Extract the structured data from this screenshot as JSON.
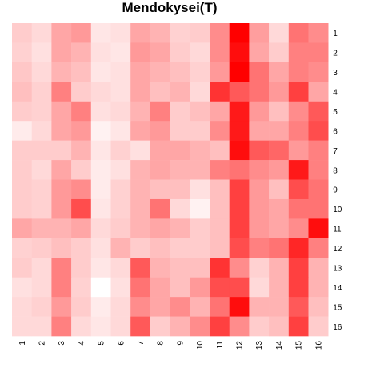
{
  "chart_data": {
    "type": "heatmap",
    "title": "Mendokysei(T)",
    "x_labels": [
      "1",
      "2",
      "3",
      "4",
      "5",
      "6",
      "7",
      "8",
      "9",
      "10",
      "11",
      "12",
      "13",
      "14",
      "15",
      "16"
    ],
    "y_labels": [
      "1",
      "2",
      "3",
      "4",
      "5",
      "6",
      "7",
      "8",
      "9",
      "10",
      "11",
      "12",
      "13",
      "14",
      "15",
      "16"
    ],
    "value_range": [
      0,
      1
    ],
    "colors": {
      "low": "#ffffff",
      "high": "#ff0000"
    },
    "values": [
      [
        0.2,
        0.15,
        0.35,
        0.4,
        0.1,
        0.12,
        0.35,
        0.3,
        0.18,
        0.2,
        0.45,
        1.0,
        0.38,
        0.15,
        0.55,
        0.45
      ],
      [
        0.18,
        0.12,
        0.35,
        0.3,
        0.12,
        0.1,
        0.4,
        0.35,
        0.2,
        0.15,
        0.45,
        0.95,
        0.35,
        0.2,
        0.5,
        0.5
      ],
      [
        0.22,
        0.15,
        0.3,
        0.25,
        0.1,
        0.12,
        0.35,
        0.3,
        0.25,
        0.18,
        0.4,
        1.0,
        0.55,
        0.35,
        0.5,
        0.45
      ],
      [
        0.25,
        0.18,
        0.5,
        0.2,
        0.15,
        0.12,
        0.35,
        0.25,
        0.3,
        0.15,
        0.8,
        0.65,
        0.55,
        0.4,
        0.75,
        0.35
      ],
      [
        0.2,
        0.18,
        0.35,
        0.5,
        0.12,
        0.15,
        0.3,
        0.5,
        0.2,
        0.25,
        0.35,
        0.9,
        0.4,
        0.25,
        0.45,
        0.65
      ],
      [
        0.08,
        0.15,
        0.35,
        0.4,
        0.05,
        0.1,
        0.35,
        0.4,
        0.2,
        0.2,
        0.45,
        0.9,
        0.35,
        0.35,
        0.5,
        0.7
      ],
      [
        0.2,
        0.2,
        0.2,
        0.3,
        0.1,
        0.18,
        0.12,
        0.35,
        0.35,
        0.3,
        0.25,
        0.95,
        0.65,
        0.6,
        0.4,
        0.5
      ],
      [
        0.2,
        0.15,
        0.35,
        0.2,
        0.08,
        0.12,
        0.3,
        0.35,
        0.3,
        0.3,
        0.5,
        0.55,
        0.45,
        0.4,
        0.9,
        0.5
      ],
      [
        0.2,
        0.18,
        0.4,
        0.45,
        0.08,
        0.18,
        0.3,
        0.25,
        0.25,
        0.12,
        0.25,
        0.75,
        0.4,
        0.25,
        0.7,
        0.55
      ],
      [
        0.2,
        0.18,
        0.4,
        0.7,
        0.1,
        0.18,
        0.3,
        0.55,
        0.15,
        0.05,
        0.25,
        0.75,
        0.4,
        0.35,
        0.55,
        0.55
      ],
      [
        0.35,
        0.3,
        0.3,
        0.35,
        0.15,
        0.2,
        0.3,
        0.35,
        0.3,
        0.2,
        0.25,
        0.75,
        0.4,
        0.35,
        0.45,
        0.95
      ],
      [
        0.18,
        0.2,
        0.25,
        0.2,
        0.12,
        0.3,
        0.2,
        0.25,
        0.2,
        0.2,
        0.25,
        0.7,
        0.5,
        0.55,
        0.85,
        0.5
      ],
      [
        0.2,
        0.15,
        0.5,
        0.2,
        0.1,
        0.15,
        0.65,
        0.3,
        0.25,
        0.25,
        0.8,
        0.45,
        0.18,
        0.3,
        0.75,
        0.3
      ],
      [
        0.12,
        0.15,
        0.5,
        0.18,
        0.0,
        0.12,
        0.55,
        0.35,
        0.25,
        0.4,
        0.7,
        0.7,
        0.15,
        0.3,
        0.75,
        0.3
      ],
      [
        0.15,
        0.18,
        0.4,
        0.2,
        0.08,
        0.15,
        0.45,
        0.35,
        0.45,
        0.3,
        0.55,
        0.95,
        0.3,
        0.3,
        0.65,
        0.25
      ],
      [
        0.15,
        0.15,
        0.5,
        0.15,
        0.1,
        0.15,
        0.65,
        0.2,
        0.3,
        0.45,
        0.75,
        0.45,
        0.2,
        0.25,
        0.75,
        0.2
      ]
    ]
  }
}
